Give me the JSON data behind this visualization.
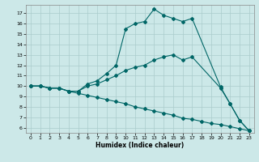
{
  "xlabel": "Humidex (Indice chaleur)",
  "bg_color": "#cce8e8",
  "grid_color": "#aacccc",
  "line_color": "#006666",
  "xlim": [
    -0.5,
    23.5
  ],
  "ylim": [
    5.5,
    17.8
  ],
  "xticks": [
    0,
    1,
    2,
    3,
    4,
    5,
    6,
    7,
    8,
    9,
    10,
    11,
    12,
    13,
    14,
    15,
    16,
    17,
    18,
    19,
    20,
    21,
    22,
    23
  ],
  "yticks": [
    6,
    7,
    8,
    9,
    10,
    11,
    12,
    13,
    14,
    15,
    16,
    17
  ],
  "line1_x": [
    0,
    1,
    2,
    3,
    4,
    5,
    6,
    7,
    8,
    9,
    10,
    11,
    12,
    13,
    14,
    15,
    16,
    17,
    20,
    21,
    22,
    23
  ],
  "line1_y": [
    10,
    10,
    9.8,
    9.8,
    9.5,
    9.5,
    10.2,
    10.5,
    11.2,
    12.0,
    15.5,
    16.0,
    16.2,
    17.4,
    16.8,
    16.5,
    16.2,
    16.5,
    9.9,
    8.3,
    6.7,
    5.7
  ],
  "line2_x": [
    0,
    1,
    2,
    3,
    4,
    5,
    6,
    7,
    8,
    9,
    10,
    11,
    12,
    13,
    14,
    15,
    16,
    17,
    20,
    21,
    22,
    23
  ],
  "line2_y": [
    10,
    10,
    9.8,
    9.8,
    9.5,
    9.5,
    10.0,
    10.2,
    10.6,
    11.0,
    11.5,
    11.8,
    12.0,
    12.5,
    12.8,
    13.0,
    12.5,
    12.8,
    9.8,
    8.3,
    6.7,
    5.7
  ],
  "line3_x": [
    0,
    1,
    2,
    3,
    4,
    5,
    6,
    7,
    8,
    9,
    10,
    11,
    12,
    13,
    14,
    15,
    16,
    17,
    18,
    19,
    20,
    21,
    22,
    23
  ],
  "line3_y": [
    10,
    10,
    9.8,
    9.8,
    9.5,
    9.3,
    9.1,
    8.9,
    8.7,
    8.5,
    8.3,
    8.0,
    7.8,
    7.6,
    7.4,
    7.2,
    6.9,
    6.8,
    6.6,
    6.4,
    6.3,
    6.1,
    5.9,
    5.7
  ]
}
